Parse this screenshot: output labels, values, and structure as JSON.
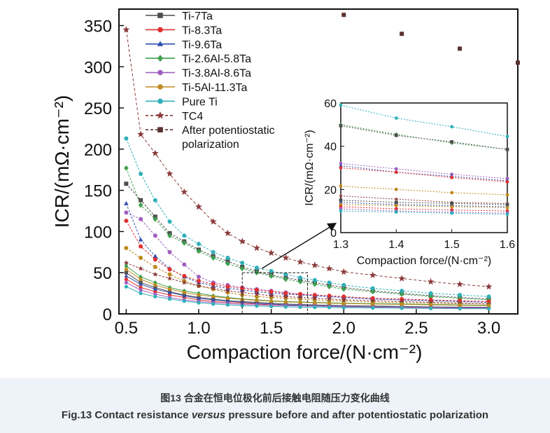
{
  "caption": {
    "cn": "图13 合金在恒电位极化前后接触电阻随压力变化曲线",
    "en_before": "Fig.13 Contact resistance ",
    "en_italic": "versus",
    "en_after": " pressure before and after potentiostatic polarization"
  },
  "chart_data": [
    {
      "type": "line",
      "xlabel": "Compaction force/(N·cm⁻²)",
      "ylabel": "ICR/(mΩ·cm⁻²)",
      "xlim": [
        0.45,
        3.2
      ],
      "ylim": [
        0,
        370
      ],
      "xticks": [
        0.5,
        1.0,
        1.5,
        2.0,
        2.5,
        3.0
      ],
      "xtick_labels": [
        "0.5",
        "1.0",
        "1.5",
        "2.0",
        "2.5",
        "3.0"
      ],
      "yticks": [
        0,
        50,
        100,
        150,
        200,
        250,
        300,
        350
      ],
      "ytick_labels": [
        "0",
        "50",
        "100",
        "150",
        "200",
        "250",
        "300",
        "350"
      ],
      "legend_position": "top-left",
      "series": [
        {
          "name": "Ti-7Ta",
          "color": "#4d4d4d",
          "marker": "square",
          "x": [
            0.5,
            0.6,
            0.7,
            0.8,
            0.9,
            1.0,
            1.1,
            1.2,
            1.3,
            1.4,
            1.5,
            1.6,
            1.7,
            1.8,
            1.9,
            2.0,
            2.2,
            2.4,
            2.6,
            2.8,
            3.0
          ],
          "y": [
            50,
            38,
            32,
            27,
            23,
            20,
            18,
            16,
            15,
            14,
            13,
            12,
            11.5,
            11,
            10.5,
            10,
            9.5,
            9,
            8.5,
            8.2,
            8
          ]
        },
        {
          "name": "Ti-8.3Ta",
          "color": "#e03030",
          "marker": "circle",
          "x": [
            0.5,
            0.6,
            0.7,
            0.8,
            0.9,
            1.0,
            1.1,
            1.2,
            1.3,
            1.4,
            1.5,
            1.6,
            1.7,
            1.8,
            1.9,
            2.0,
            2.2,
            2.4,
            2.6,
            2.8,
            3.0
          ],
          "y": [
            42,
            32,
            27,
            23,
            20,
            17,
            15,
            14,
            13,
            12,
            11,
            10.5,
            10,
            9.5,
            9,
            8.7,
            8.2,
            7.8,
            7.5,
            7.2,
            7
          ]
        },
        {
          "name": "Ti-9.6Ta",
          "color": "#3050b0",
          "marker": "triangle",
          "x": [
            0.5,
            0.6,
            0.7,
            0.8,
            0.9,
            1.0,
            1.1,
            1.2,
            1.3,
            1.4,
            1.5,
            1.6,
            1.7,
            1.8,
            1.9,
            2.0,
            2.2,
            2.4,
            2.6,
            2.8,
            3.0
          ],
          "y": [
            46,
            36,
            30,
            26,
            22,
            19,
            17,
            15.5,
            14,
            13,
            12,
            11,
            10.5,
            10,
            9.6,
            9.2,
            8.7,
            8.3,
            8,
            7.7,
            7.5
          ]
        },
        {
          "name": "Ti-2.6Al-5.8Ta",
          "color": "#40a050",
          "marker": "diamond",
          "x": [
            0.5,
            0.6,
            0.7,
            0.8,
            0.9,
            1.0,
            1.1,
            1.2,
            1.3,
            1.4,
            1.5,
            1.6,
            1.7,
            1.8,
            1.9,
            2.0,
            2.2,
            2.4,
            2.6,
            2.8,
            3.0
          ],
          "y": [
            58,
            45,
            38,
            32,
            28,
            25,
            22,
            20,
            18,
            17,
            16,
            15,
            14.5,
            14,
            13.5,
            13,
            12.5,
            12,
            11.5,
            11,
            10.5
          ]
        },
        {
          "name": "Ti-3.8Al-8.6Ta",
          "color": "#a060c0",
          "marker": "circle",
          "x": [
            0.5,
            0.6,
            0.7,
            0.8,
            0.9,
            1.0,
            1.1,
            1.2,
            1.3,
            1.4,
            1.5,
            1.6,
            1.7,
            1.8,
            1.9,
            2.0,
            2.2,
            2.4,
            2.6,
            2.8,
            3.0
          ],
          "y": [
            38,
            29,
            24,
            20,
            17,
            15,
            13.5,
            12.5,
            11.5,
            11,
            10.5,
            10,
            9.7,
            9.4,
            9.1,
            8.8,
            8.4,
            8,
            7.7,
            7.4,
            7.2
          ]
        },
        {
          "name": "Ti-5Al-11.3Ta",
          "color": "#c08a20",
          "marker": "circle",
          "x": [
            0.5,
            0.6,
            0.7,
            0.8,
            0.9,
            1.0,
            1.1,
            1.2,
            1.3,
            1.4,
            1.5,
            1.6,
            1.7,
            1.8,
            1.9,
            2.0,
            2.2,
            2.4,
            2.6,
            2.8,
            3.0
          ],
          "y": [
            54,
            42,
            35,
            30,
            26,
            23,
            21,
            19,
            17.5,
            16.5,
            15.5,
            14.5,
            14,
            13.5,
            13,
            12.5,
            12,
            11.5,
            11,
            10.5,
            10
          ]
        },
        {
          "name": "Pure Ti",
          "color": "#30b0b8",
          "marker": "circle",
          "x": [
            0.5,
            0.6,
            0.7,
            0.8,
            0.9,
            1.0,
            1.1,
            1.2,
            1.3,
            1.4,
            1.5,
            1.6,
            1.7,
            1.8,
            1.9,
            2.0,
            2.2,
            2.4,
            2.6,
            2.8,
            3.0
          ],
          "y": [
            33,
            25,
            21,
            18,
            15.5,
            13.5,
            12,
            11,
            10,
            9.5,
            9,
            8.5,
            8.2,
            8,
            7.8,
            7.6,
            7.2,
            6.9,
            6.6,
            6.4,
            6.2
          ]
        },
        {
          "name": "TC4",
          "color": "#8b3a3a",
          "marker": "star",
          "x": [
            0.5,
            0.6,
            0.7,
            0.8,
            0.9,
            1.0,
            1.1,
            1.2,
            1.3,
            1.4,
            1.5,
            1.6,
            1.7,
            1.8,
            1.9,
            2.0,
            2.2,
            2.4,
            2.6,
            2.8,
            3.0
          ],
          "y": [
            345,
            218,
            195,
            170,
            148,
            130,
            112,
            98,
            88,
            80,
            74,
            68,
            63,
            59,
            55,
            51,
            47,
            43,
            39,
            36,
            33
          ]
        },
        {
          "name": "After potentiostatic polarization",
          "color": "#5a3030",
          "marker": "square",
          "x": [
            2.0,
            2.4,
            2.8,
            3.2
          ],
          "y": [
            363,
            340,
            322,
            305
          ]
        }
      ],
      "after_polarization_sets": [
        {
          "color": "#4d4d4d",
          "marker": "square",
          "x": [
            0.5,
            0.6,
            0.7,
            0.8,
            0.9,
            1.0,
            1.1,
            1.2,
            1.3,
            1.4,
            1.5,
            1.6,
            1.7,
            1.8,
            1.9,
            2.0,
            2.2,
            2.4,
            2.6,
            2.8,
            3.0
          ],
          "y": [
            158,
            138,
            118,
            98,
            88,
            78,
            70,
            64,
            57,
            52,
            47,
            44,
            41,
            38,
            35,
            32,
            28,
            25,
            22,
            20,
            18
          ]
        },
        {
          "color": "#40a050",
          "marker": "diamond",
          "x": [
            0.5,
            0.6,
            0.7,
            0.8,
            0.9,
            1.0,
            1.1,
            1.2,
            1.3,
            1.4,
            1.5,
            1.6,
            1.7,
            1.8,
            1.9,
            2.0,
            2.2,
            2.4,
            2.6,
            2.8,
            3.0
          ],
          "y": [
            177,
            132,
            115,
            95,
            86,
            76,
            68,
            61,
            55,
            50,
            46,
            42,
            39,
            36,
            33,
            30,
            27,
            24,
            21,
            19,
            17
          ]
        },
        {
          "color": "#30b0b8",
          "marker": "circle",
          "x": [
            0.5,
            0.6,
            0.7,
            0.8,
            0.9,
            1.0,
            1.1,
            1.2,
            1.3,
            1.4,
            1.5,
            1.6,
            1.7,
            1.8,
            1.9,
            2.0,
            2.2,
            2.4,
            2.6,
            2.8,
            3.0
          ],
          "y": [
            213,
            170,
            138,
            112,
            95,
            85,
            75,
            68,
            62,
            56,
            52,
            48,
            44,
            41,
            38,
            35,
            31,
            28,
            25,
            23,
            21
          ]
        },
        {
          "color": "#a060c0",
          "marker": "circle",
          "x": [
            0.5,
            0.6,
            0.7,
            0.8,
            0.9,
            1.0,
            1.1,
            1.2,
            1.3,
            1.4,
            1.5,
            1.6,
            1.7,
            1.8,
            1.9,
            2.0,
            2.2,
            2.4,
            2.6,
            2.8,
            3.0
          ],
          "y": [
            123,
            115,
            95,
            75,
            60,
            45,
            38,
            35,
            32,
            30,
            28,
            26,
            24,
            22,
            21,
            20,
            18,
            17,
            16,
            15,
            14
          ]
        },
        {
          "color": "#3050b0",
          "marker": "triangle",
          "x": [
            0.5,
            0.6,
            0.7,
            0.8,
            0.9,
            1.0,
            1.1,
            1.2,
            1.3,
            1.4,
            1.5,
            1.6,
            1.7,
            1.8,
            1.9,
            2.0,
            2.2,
            2.4,
            2.6,
            2.8,
            3.0
          ],
          "y": [
            134,
            90,
            70,
            55,
            45,
            38,
            34,
            31,
            29,
            27,
            25,
            24,
            23,
            22,
            21,
            20,
            18,
            17,
            16,
            15,
            14
          ]
        },
        {
          "color": "#e03030",
          "marker": "circle",
          "x": [
            0.5,
            0.6,
            0.7,
            0.8,
            0.9,
            1.0,
            1.1,
            1.2,
            1.3,
            1.4,
            1.5,
            1.6,
            1.7,
            1.8,
            1.9,
            2.0,
            2.2,
            2.4,
            2.6,
            2.8,
            3.0
          ],
          "y": [
            113,
            82,
            66,
            54,
            46,
            40,
            36,
            33,
            31,
            29,
            27,
            25,
            24,
            23,
            22,
            21,
            19,
            18,
            17,
            16,
            15
          ]
        },
        {
          "color": "#c08a20",
          "marker": "circle",
          "x": [
            0.5,
            0.6,
            0.7,
            0.8,
            0.9,
            1.0,
            1.1,
            1.2,
            1.3,
            1.4,
            1.5,
            1.6,
            1.7,
            1.8,
            1.9,
            2.0,
            2.2,
            2.4,
            2.6,
            2.8,
            3.0
          ],
          "y": [
            80,
            68,
            57,
            48,
            40,
            34,
            30,
            26,
            23,
            21,
            20,
            19,
            18,
            17,
            16,
            15.5,
            14.5,
            13.5,
            13,
            12.5,
            12
          ]
        },
        {
          "color": "#8b3a3a",
          "marker": "star",
          "x": [
            0.5,
            0.6,
            0.7,
            0.8,
            0.9,
            1.0,
            1.1,
            1.2,
            1.3,
            1.4,
            1.5,
            1.6,
            1.7,
            1.8,
            1.9,
            2.0,
            2.2,
            2.4,
            2.6,
            2.8,
            3.0
          ],
          "y": [
            62,
            55,
            48,
            43,
            38,
            34,
            31,
            28,
            26,
            24,
            22,
            21,
            20,
            19,
            18,
            17,
            16,
            15,
            14,
            13,
            12
          ]
        }
      ],
      "zoom_box": {
        "x": [
          1.3,
          1.75
        ],
        "y": [
          0,
          50
        ]
      }
    },
    {
      "type": "line",
      "role": "inset",
      "xlabel": "Compaction force/(N·cm⁻²)",
      "ylabel": "ICR/(mΩ·cm⁻²)",
      "xlim": [
        1.3,
        1.6
      ],
      "ylim": [
        0,
        60
      ],
      "xticks": [
        1.3,
        1.4,
        1.5,
        1.6
      ],
      "xtick_labels": [
        "1.3",
        "1.4",
        "1.5",
        "1.6"
      ],
      "yticks": [
        0,
        20,
        40,
        60
      ],
      "ytick_labels": [
        "0",
        "20",
        "40",
        "60"
      ],
      "series": [
        {
          "color": "#30b0b8",
          "marker": "circle",
          "x": [
            1.3,
            1.4,
            1.5,
            1.6
          ],
          "y": [
            59,
            53,
            49,
            44.5
          ]
        },
        {
          "color": "#40a050",
          "marker": "diamond",
          "x": [
            1.3,
            1.4,
            1.5,
            1.6
          ],
          "y": [
            50,
            45.5,
            41.5,
            38.5
          ]
        },
        {
          "color": "#4d4d4d",
          "marker": "square",
          "x": [
            1.3,
            1.4,
            1.5,
            1.6
          ],
          "y": [
            49.5,
            45,
            42,
            38.5
          ]
        },
        {
          "color": "#a060c0",
          "marker": "circle",
          "x": [
            1.3,
            1.4,
            1.5,
            1.6
          ],
          "y": [
            32,
            29.5,
            27,
            25
          ]
        },
        {
          "color": "#3050b0",
          "marker": "triangle",
          "x": [
            1.3,
            1.4,
            1.5,
            1.6
          ],
          "y": [
            31,
            28,
            26,
            24
          ]
        },
        {
          "color": "#e03030",
          "marker": "circle",
          "x": [
            1.3,
            1.4,
            1.5,
            1.6
          ],
          "y": [
            30,
            28,
            25.5,
            23.5
          ]
        },
        {
          "color": "#c08a20",
          "marker": "circle",
          "x": [
            1.3,
            1.4,
            1.5,
            1.6
          ],
          "y": [
            21.5,
            20,
            18.5,
            17.5
          ]
        },
        {
          "color": "#8b3a3a",
          "marker": "star",
          "x": [
            1.3,
            1.4,
            1.5,
            1.6
          ],
          "y": [
            17,
            15.5,
            14,
            13.5
          ]
        },
        {
          "color": "#4d4d4d",
          "marker": "square",
          "x": [
            1.3,
            1.4,
            1.5,
            1.6
          ],
          "y": [
            15,
            14,
            13.5,
            13
          ]
        },
        {
          "color": "#3050b0",
          "marker": "triangle",
          "x": [
            1.3,
            1.4,
            1.5,
            1.6
          ],
          "y": [
            14,
            13,
            12.5,
            12
          ]
        },
        {
          "color": "#c08a20",
          "marker": "circle",
          "x": [
            1.3,
            1.4,
            1.5,
            1.6
          ],
          "y": [
            13,
            12.5,
            12,
            11.5
          ]
        },
        {
          "color": "#e03030",
          "marker": "circle",
          "x": [
            1.3,
            1.4,
            1.5,
            1.6
          ],
          "y": [
            12,
            11,
            10.5,
            10
          ]
        },
        {
          "color": "#a060c0",
          "marker": "circle",
          "x": [
            1.3,
            1.4,
            1.5,
            1.6
          ],
          "y": [
            11,
            10,
            9.5,
            9
          ]
        },
        {
          "color": "#30b0b8",
          "marker": "circle",
          "x": [
            1.3,
            1.4,
            1.5,
            1.6
          ],
          "y": [
            10,
            9.5,
            9,
            8.5
          ]
        }
      ]
    }
  ]
}
